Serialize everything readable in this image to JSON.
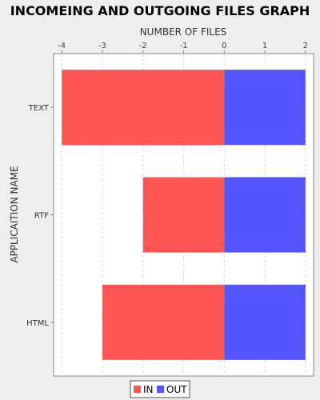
{
  "chart_data": {
    "type": "bar",
    "orientation": "horizontal",
    "stacked": true,
    "title": "INCOMEING AND OUTGOING FILES GRAPH",
    "xlabel": "NUMBER OF FILES",
    "ylabel": "APPLICAITION NAME",
    "categories": [
      "TEXT",
      "RTF",
      "HTML"
    ],
    "series": [
      {
        "name": "IN",
        "values": [
          -4,
          -2,
          -3
        ],
        "color": "#ff5555"
      },
      {
        "name": "OUT",
        "values": [
          2,
          2,
          2
        ],
        "color": "#5555ff"
      }
    ],
    "x_ticks": [
      "-4",
      "-3",
      "-2",
      "-1",
      "0",
      "1",
      "2"
    ],
    "xlim": [
      -4.2,
      2.2
    ],
    "x_axis_position": "top",
    "grid": true,
    "legend": "bottom"
  }
}
